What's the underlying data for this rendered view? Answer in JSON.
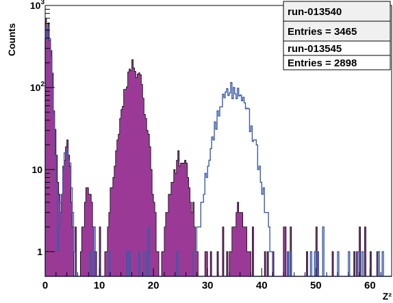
{
  "chart_data": {
    "type": "histogram",
    "title": "",
    "xlabel": "Z²",
    "ylabel": "Counts",
    "xlim": [
      0,
      64
    ],
    "ylim": [
      0.5,
      1000
    ],
    "y_scale": "log",
    "x_ticks": [
      "0",
      "10",
      "20",
      "30",
      "40",
      "50",
      "60"
    ],
    "y_ticks": [
      {
        "value": 1,
        "base": "1",
        "exp": ""
      },
      {
        "value": 10,
        "base": "10",
        "exp": ""
      },
      {
        "value": 100,
        "base": "10",
        "exp": "2"
      },
      {
        "value": 1000,
        "base": "10",
        "exp": "3"
      }
    ],
    "legend_placement": "top-right",
    "series": [
      {
        "name": "run-013540",
        "entries_label": "Entries = 3465",
        "color": "#9b3a96",
        "fill": "#9b3a96",
        "style": "filled",
        "peaks": [
          {
            "center": 0.3,
            "height": 600,
            "width": 0.6
          },
          {
            "center": 1.5,
            "height": 14,
            "width": 0.7
          },
          {
            "center": 4.0,
            "height": 20,
            "width": 0.5
          },
          {
            "center": 8.0,
            "height": 6,
            "width": 0.7
          },
          {
            "center": 12.5,
            "height": 4,
            "width": 0.6
          },
          {
            "center": 16.3,
            "height": 180,
            "width": 1.4
          },
          {
            "center": 25.0,
            "height": 14,
            "width": 1.4
          },
          {
            "center": 36.0,
            "height": 3,
            "width": 1.2
          }
        ]
      },
      {
        "name": "run-013545",
        "entries_label": "Entries = 2898",
        "color": "#3b5aa8",
        "fill": "none",
        "style": "outline",
        "peaks": [
          {
            "center": 0.3,
            "height": 500,
            "width": 0.6
          },
          {
            "center": 4.0,
            "height": 17,
            "width": 0.6
          },
          {
            "center": 34.8,
            "height": 95,
            "width": 2.3
          }
        ]
      }
    ]
  },
  "legend": {
    "entries": [
      {
        "run": "run-013540",
        "entries": "Entries = 3465",
        "color": "#9b3a96"
      },
      {
        "run": "run-013545",
        "entries": "Entries = 2898",
        "color": "#3b5aa8"
      }
    ]
  }
}
